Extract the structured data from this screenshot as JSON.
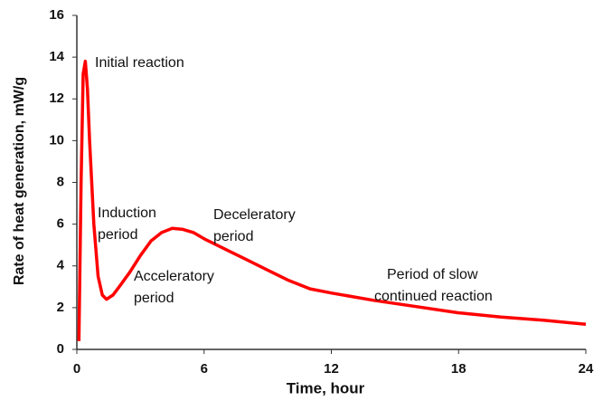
{
  "chart_data": {
    "type": "line",
    "xlabel": "Time, hour",
    "ylabel": "Rate of heat generation, mW/g",
    "x": [
      0.1,
      0.2,
      0.3,
      0.4,
      0.5,
      0.6,
      0.8,
      1.0,
      1.2,
      1.4,
      1.7,
      2,
      2.5,
      3,
      3.5,
      4,
      4.5,
      5,
      5.5,
      6,
      7,
      8,
      9,
      10,
      11,
      12,
      14,
      16,
      18,
      20,
      22,
      24
    ],
    "series": [
      {
        "color": "#ff0000",
        "values": [
          0.4,
          8,
          13.2,
          13.8,
          12.5,
          10,
          6,
          3.5,
          2.6,
          2.4,
          2.6,
          3.0,
          3.7,
          4.5,
          5.2,
          5.6,
          5.8,
          5.75,
          5.6,
          5.3,
          4.8,
          4.3,
          3.8,
          3.3,
          2.9,
          2.7,
          2.35,
          2.05,
          1.75,
          1.55,
          1.4,
          1.2
        ]
      }
    ],
    "xlim": [
      0,
      24
    ],
    "xticks": [
      0,
      6,
      12,
      18,
      24
    ],
    "ylim": [
      0,
      16
    ],
    "yticks": [
      0,
      2,
      4,
      6,
      8,
      10,
      12,
      14,
      16
    ],
    "grid": false,
    "annotations": [
      {
        "lines": [
          "Initial reaction"
        ]
      },
      {
        "lines": [
          "Induction",
          "period"
        ]
      },
      {
        "lines": [
          "Acceleratory",
          "period"
        ]
      },
      {
        "lines": [
          "Deceleratory",
          "period"
        ]
      },
      {
        "lines": [
          "Period of slow",
          "continued reaction"
        ]
      }
    ]
  }
}
